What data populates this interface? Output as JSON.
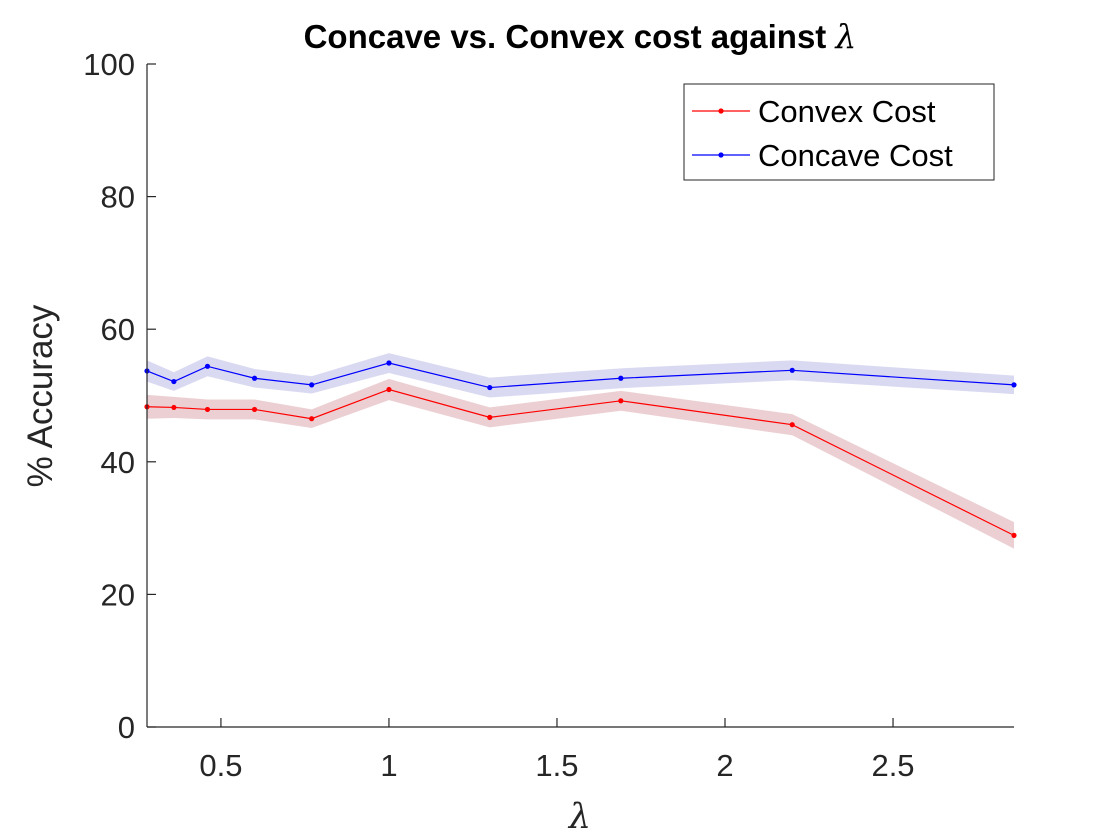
{
  "chart_data": {
    "type": "line",
    "title": "Concave vs. Convex cost against",
    "title_symbol": "λ",
    "xlabel": "λ",
    "ylabel": "% Accuracy",
    "xlim": [
      0.28,
      2.86
    ],
    "ylim": [
      0,
      100
    ],
    "xticks": [
      0.5,
      1,
      1.5,
      2,
      2.5
    ],
    "xtick_labels": [
      "0.5",
      "1",
      "1.5",
      "2",
      "2.5"
    ],
    "yticks": [
      0,
      20,
      40,
      60,
      80,
      100
    ],
    "ytick_labels": [
      "0",
      "20",
      "40",
      "60",
      "80",
      "100"
    ],
    "grid": false,
    "legend_position": "top-right",
    "x": [
      0.28,
      0.36,
      0.46,
      0.6,
      0.77,
      1.0,
      1.3,
      1.69,
      2.2,
      2.86
    ],
    "series": [
      {
        "name": "Convex Cost",
        "color": "#ff0000",
        "band_color": "#d9a0a8",
        "values": [
          48.3,
          48.2,
          47.9,
          47.9,
          46.5,
          50.9,
          46.7,
          49.2,
          45.6,
          28.9
        ],
        "band": [
          1.8,
          1.6,
          1.5,
          1.5,
          1.4,
          1.6,
          1.5,
          1.5,
          1.6,
          2.0
        ]
      },
      {
        "name": "Concave Cost",
        "color": "#0000ff",
        "band_color": "#b3b3e6",
        "values": [
          53.7,
          52.1,
          54.4,
          52.6,
          51.6,
          54.9,
          51.2,
          52.6,
          53.8,
          51.6
        ],
        "band": [
          1.6,
          1.4,
          1.5,
          1.4,
          1.3,
          1.5,
          1.5,
          1.5,
          1.5,
          1.4
        ]
      }
    ]
  }
}
